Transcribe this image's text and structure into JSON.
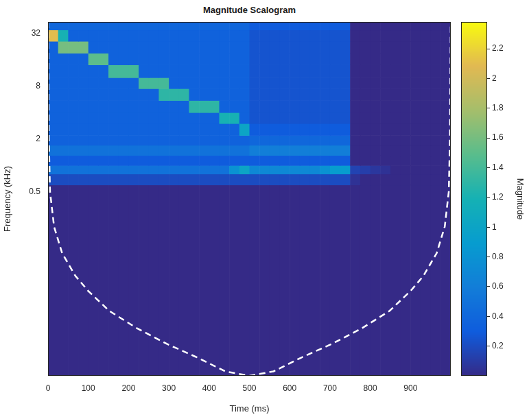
{
  "chart_data": {
    "type": "heatmap",
    "title": "Magnitude Scalogram",
    "x_label": "Time (ms)",
    "y_label": "Frequency (kHz)",
    "log": "y",
    "grid": false,
    "xlim": [
      0,
      1000
    ],
    "xticks": [
      0,
      100,
      200,
      300,
      400,
      500,
      600,
      700,
      800,
      900
    ],
    "ylim": [
      0.004,
      43
    ],
    "yticks": [
      0.5,
      2,
      8,
      32
    ],
    "x_edges": [
      0,
      25,
      50,
      75,
      100,
      125,
      150,
      175,
      200,
      225,
      250,
      275,
      300,
      325,
      350,
      375,
      400,
      425,
      450,
      475,
      500,
      525,
      550,
      575,
      600,
      625,
      650,
      675,
      700,
      725,
      750,
      775,
      800,
      825,
      850,
      875,
      900,
      925,
      950,
      975,
      1000
    ],
    "y_edges": [
      0.004,
      0.6,
      0.8,
      1.0,
      1.3,
      1.7,
      2.2,
      3,
      4,
      5.5,
      7.5,
      10,
      14,
      19,
      26,
      35,
      43
    ],
    "cells": [
      [
        0,
        0,
        0,
        0,
        0,
        0,
        0,
        0,
        0,
        0,
        0,
        0,
        0,
        0,
        0,
        0,
        0,
        0,
        0,
        0,
        0,
        0,
        0,
        0,
        0,
        0,
        0,
        0,
        0,
        0,
        0,
        0,
        0,
        0,
        0,
        0,
        0,
        0,
        0,
        0
      ],
      [
        0.2,
        0.2,
        0.2,
        0.2,
        0.2,
        0.2,
        0.2,
        0.2,
        0.2,
        0.2,
        0.2,
        0.2,
        0.2,
        0.2,
        0.2,
        0.2,
        0.2,
        0.2,
        0.2,
        0.2,
        0.2,
        0.2,
        0.2,
        0.2,
        0.2,
        0.2,
        0.2,
        0.2,
        0.2,
        0.2,
        0.05,
        0,
        0,
        0,
        0,
        0,
        0,
        0,
        0,
        0
      ],
      [
        0.5,
        0.5,
        0.5,
        0.5,
        0.5,
        0.5,
        0.5,
        0.5,
        0.5,
        0.5,
        0.5,
        0.5,
        0.5,
        0.5,
        0.5,
        0.5,
        0.5,
        0.5,
        0.8,
        1.0,
        0.7,
        0.7,
        0.7,
        0.7,
        0.7,
        0.7,
        0.7,
        0.8,
        0.9,
        0.9,
        0.15,
        0.12,
        0.08,
        0.05,
        0,
        0,
        0,
        0,
        0,
        0
      ],
      [
        0.3,
        0.3,
        0.3,
        0.3,
        0.3,
        0.3,
        0.3,
        0.3,
        0.3,
        0.3,
        0.3,
        0.3,
        0.3,
        0.3,
        0.3,
        0.3,
        0.3,
        0.3,
        0.3,
        0.3,
        0.3,
        0.3,
        0.3,
        0.3,
        0.3,
        0.3,
        0.3,
        0.3,
        0.3,
        0.3,
        0,
        0,
        0,
        0,
        0,
        0,
        0,
        0,
        0,
        0
      ],
      [
        0.5,
        0.5,
        0.5,
        0.5,
        0.5,
        0.5,
        0.5,
        0.5,
        0.5,
        0.5,
        0.5,
        0.5,
        0.5,
        0.5,
        0.5,
        0.5,
        0.5,
        0.5,
        0.5,
        0.5,
        0.6,
        0.6,
        0.6,
        0.6,
        0.6,
        0.6,
        0.6,
        0.6,
        0.6,
        0.6,
        0,
        0,
        0,
        0,
        0,
        0,
        0,
        0,
        0,
        0
      ],
      [
        0.35,
        0.35,
        0.35,
        0.35,
        0.35,
        0.35,
        0.35,
        0.35,
        0.35,
        0.35,
        0.35,
        0.35,
        0.35,
        0.35,
        0.35,
        0.35,
        0.35,
        0.35,
        0.35,
        0.35,
        0.4,
        0.4,
        0.4,
        0.4,
        0.4,
        0.4,
        0.4,
        0.4,
        0.4,
        0.4,
        0,
        0,
        0,
        0,
        0,
        0,
        0,
        0,
        0,
        0
      ],
      [
        0.35,
        0.35,
        0.35,
        0.35,
        0.35,
        0.35,
        0.35,
        0.35,
        0.35,
        0.35,
        0.35,
        0.35,
        0.35,
        0.35,
        0.35,
        0.35,
        0.35,
        0.35,
        0.35,
        1.0,
        0.3,
        0.3,
        0.3,
        0.3,
        0.3,
        0.3,
        0.3,
        0.3,
        0.3,
        0.3,
        0,
        0,
        0,
        0,
        0,
        0,
        0,
        0,
        0,
        0
      ],
      [
        0.35,
        0.35,
        0.35,
        0.35,
        0.35,
        0.35,
        0.35,
        0.35,
        0.35,
        0.35,
        0.35,
        0.35,
        0.35,
        0.35,
        0.35,
        0.35,
        0.35,
        1.2,
        1.2,
        0.35,
        0.25,
        0.25,
        0.25,
        0.25,
        0.25,
        0.25,
        0.25,
        0.25,
        0.25,
        0.25,
        0,
        0,
        0,
        0,
        0,
        0,
        0,
        0,
        0,
        0
      ],
      [
        0.35,
        0.35,
        0.35,
        0.35,
        0.35,
        0.35,
        0.35,
        0.35,
        0.35,
        0.35,
        0.35,
        0.35,
        0.35,
        0.35,
        1.3,
        1.3,
        1.3,
        0.35,
        0.35,
        0.35,
        0.25,
        0.25,
        0.25,
        0.25,
        0.25,
        0.25,
        0.25,
        0.25,
        0.25,
        0.25,
        0,
        0,
        0,
        0,
        0,
        0,
        0,
        0,
        0,
        0
      ],
      [
        0.35,
        0.35,
        0.35,
        0.35,
        0.35,
        0.35,
        0.35,
        0.35,
        0.35,
        0.35,
        0.35,
        1.3,
        1.3,
        1.3,
        0.35,
        0.35,
        0.35,
        0.35,
        0.35,
        0.35,
        0.25,
        0.25,
        0.25,
        0.25,
        0.25,
        0.25,
        0.25,
        0.25,
        0.25,
        0.25,
        0,
        0,
        0,
        0,
        0,
        0,
        0,
        0,
        0,
        0
      ],
      [
        0.35,
        0.35,
        0.35,
        0.35,
        0.35,
        0.35,
        0.35,
        0.35,
        0.35,
        1.4,
        1.4,
        1.4,
        0.35,
        0.35,
        0.35,
        0.35,
        0.35,
        0.35,
        0.35,
        0.35,
        0.25,
        0.25,
        0.25,
        0.25,
        0.25,
        0.25,
        0.25,
        0.25,
        0.25,
        0.25,
        0,
        0,
        0,
        0,
        0,
        0,
        0,
        0,
        0,
        0
      ],
      [
        0.35,
        0.35,
        0.35,
        0.35,
        0.35,
        0.35,
        1.4,
        1.4,
        1.4,
        0.35,
        0.35,
        0.35,
        0.35,
        0.35,
        0.35,
        0.35,
        0.35,
        0.35,
        0.35,
        0.35,
        0.25,
        0.25,
        0.25,
        0.25,
        0.25,
        0.25,
        0.25,
        0.25,
        0.25,
        0.25,
        0,
        0,
        0,
        0,
        0,
        0,
        0,
        0,
        0,
        0
      ],
      [
        0.35,
        0.35,
        0.35,
        0.35,
        1.5,
        1.5,
        0.35,
        0.35,
        0.35,
        0.35,
        0.35,
        0.35,
        0.35,
        0.35,
        0.35,
        0.35,
        0.35,
        0.35,
        0.35,
        0.35,
        0.25,
        0.25,
        0.25,
        0.25,
        0.25,
        0.25,
        0.25,
        0.25,
        0.25,
        0.25,
        0,
        0,
        0,
        0,
        0,
        0,
        0,
        0,
        0,
        0
      ],
      [
        0.35,
        1.6,
        1.6,
        1.6,
        0.35,
        0.35,
        0.35,
        0.35,
        0.35,
        0.35,
        0.35,
        0.35,
        0.35,
        0.35,
        0.35,
        0.35,
        0.35,
        0.35,
        0.35,
        0.35,
        0.25,
        0.25,
        0.25,
        0.25,
        0.25,
        0.25,
        0.25,
        0.25,
        0.25,
        0.25,
        0,
        0,
        0,
        0,
        0,
        0,
        0,
        0,
        0,
        0
      ],
      [
        2.1,
        1.2,
        0.35,
        0.35,
        0.35,
        0.35,
        0.35,
        0.35,
        0.35,
        0.35,
        0.35,
        0.35,
        0.35,
        0.35,
        0.35,
        0.35,
        0.35,
        0.35,
        0.35,
        0.35,
        0.25,
        0.25,
        0.25,
        0.25,
        0.25,
        0.25,
        0.25,
        0.25,
        0.25,
        0.25,
        0,
        0,
        0,
        0,
        0,
        0,
        0,
        0,
        0,
        0
      ],
      [
        0.4,
        0.4,
        0.4,
        0.4,
        0.4,
        0.4,
        0.4,
        0.4,
        0.4,
        0.4,
        0.4,
        0.4,
        0.4,
        0.4,
        0.4,
        0.4,
        0.4,
        0.4,
        0.4,
        0.4,
        0.3,
        0.3,
        0.3,
        0.3,
        0.3,
        0.3,
        0.3,
        0.3,
        0.3,
        0.3,
        0,
        0,
        0,
        0,
        0,
        0,
        0,
        0,
        0,
        0
      ]
    ],
    "colorbar": {
      "label": "Magnitude",
      "lim": [
        0,
        2.38
      ],
      "ticks": [
        0.2,
        0.4,
        0.6,
        0.8,
        1,
        1.2,
        1.4,
        1.6,
        1.8,
        2,
        2.2
      ]
    },
    "series": [
      {
        "type": "line",
        "color": "#ffffff",
        "line_style": "dashed",
        "x": [
          0,
          2,
          5,
          15,
          35,
          68,
          100,
          152,
          220,
          296,
          370,
          440,
          500,
          560,
          630,
          704,
          780,
          848,
          900,
          932,
          965,
          985,
          995,
          998,
          1000
        ],
        "values": [
          43,
          2,
          0.5,
          0.2,
          0.1,
          0.055,
          0.037,
          0.022,
          0.014,
          0.0092,
          0.0065,
          0.0045,
          0.004,
          0.0045,
          0.0065,
          0.0092,
          0.014,
          0.022,
          0.037,
          0.055,
          0.1,
          0.2,
          0.5,
          2,
          43
        ]
      }
    ]
  }
}
